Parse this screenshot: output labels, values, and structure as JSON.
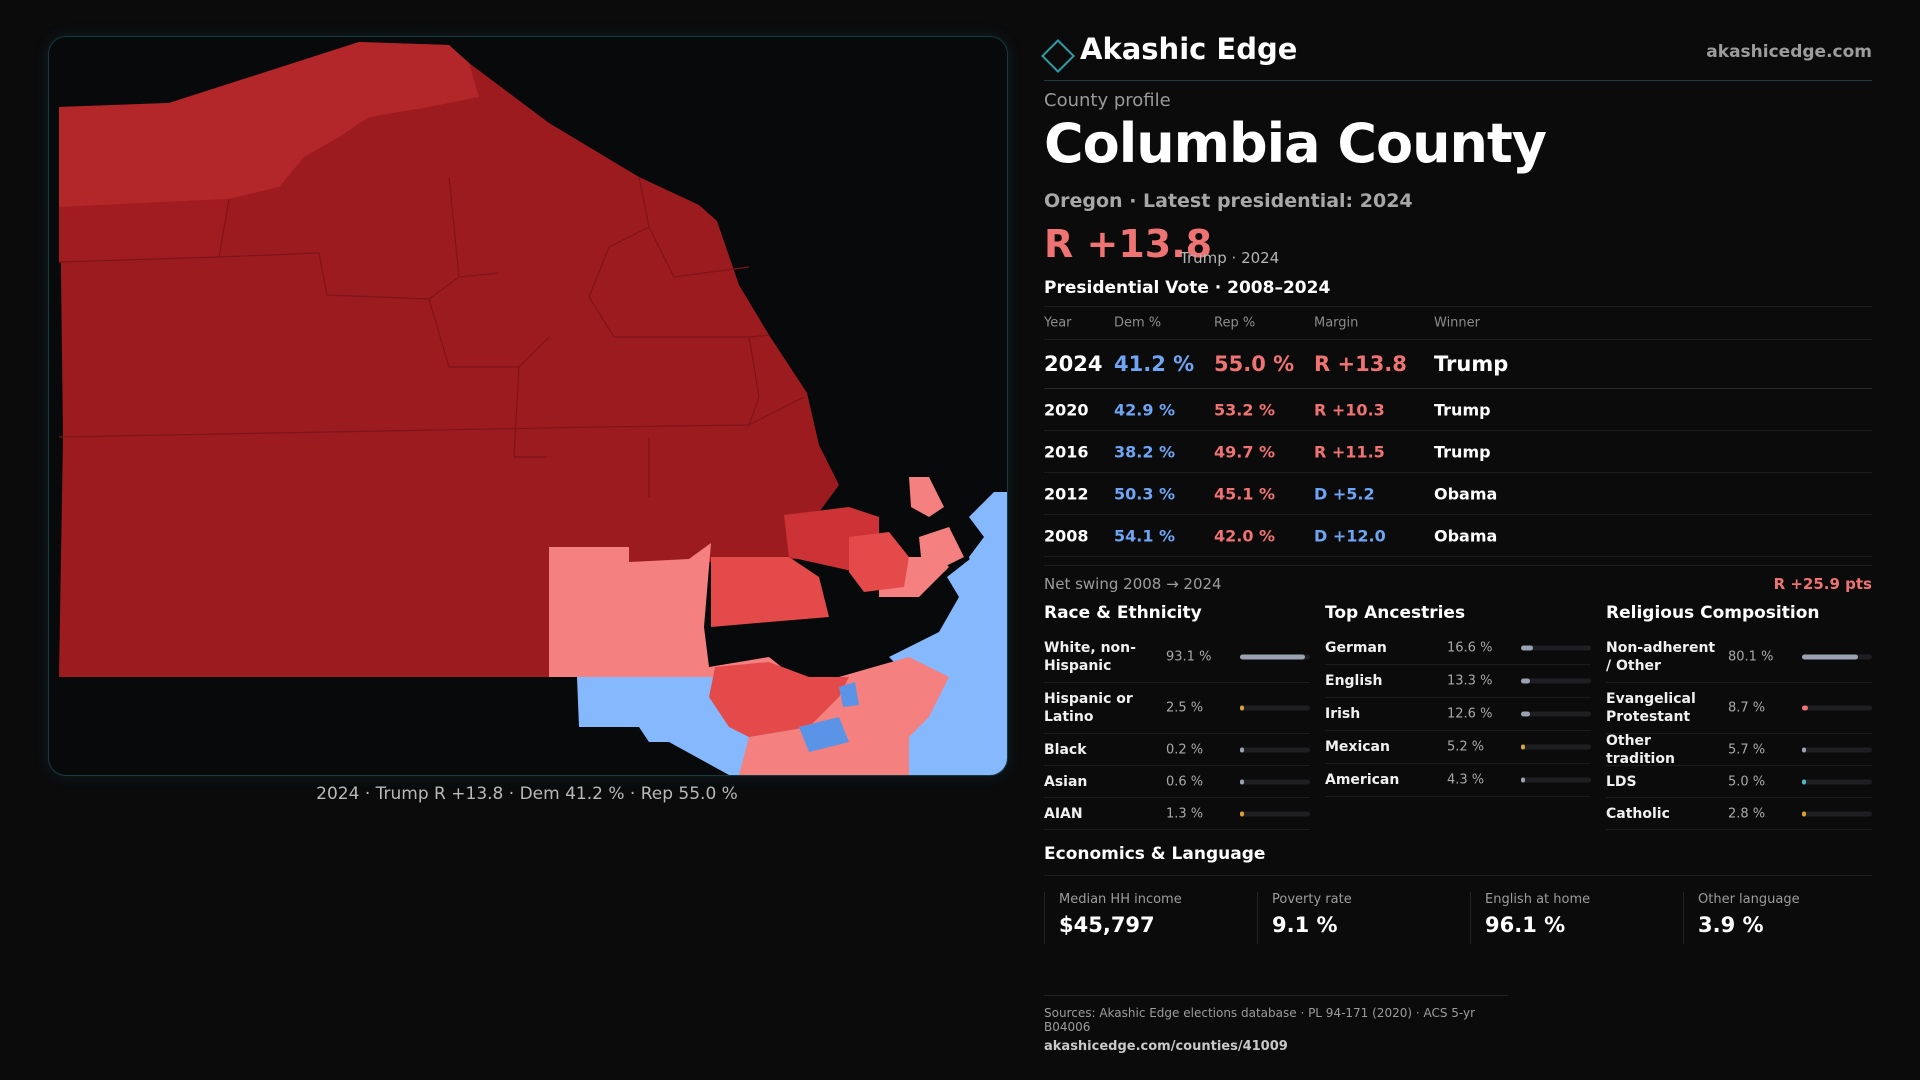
{
  "brand": {
    "name": "Akashic Edge",
    "site": "akashicedge.com"
  },
  "colors": {
    "rep_strong": "#9c1b1f",
    "rep_mid": "#b3262a",
    "rep_light": "#f58080",
    "rep_bright": "#e54a4a",
    "dem_light": "#86b8fd",
    "dem_mid": "#5b93e6",
    "accent": "#2f9aa6"
  },
  "map": {
    "icon": "county-map",
    "caption": "2024 · Trump R +13.8 · Dem 41.2 % · Rep 55.0 %"
  },
  "profile": {
    "label": "County profile",
    "county": "Columbia County",
    "subtitle": "Oregon · Latest presidential: 2024",
    "margin": "R +13.8",
    "margin_sub": "Trump · 2024"
  },
  "vote": {
    "title": "Presidential Vote · 2008–2024",
    "headers": {
      "year": "Year",
      "dem": "Dem %",
      "rep": "Rep %",
      "margin": "Margin",
      "winner": "Winner"
    },
    "rows": [
      {
        "year": "2024",
        "dem": "41.2 %",
        "rep": "55.0 %",
        "margin": "R +13.8",
        "party": "rep",
        "winner": "Trump"
      },
      {
        "year": "2020",
        "dem": "42.9 %",
        "rep": "53.2 %",
        "margin": "R +10.3",
        "party": "rep",
        "winner": "Trump"
      },
      {
        "year": "2016",
        "dem": "38.2 %",
        "rep": "49.7 %",
        "margin": "R +11.5",
        "party": "rep",
        "winner": "Trump"
      },
      {
        "year": "2012",
        "dem": "50.3 %",
        "rep": "45.1 %",
        "margin": "D +5.2",
        "party": "dem",
        "winner": "Obama"
      },
      {
        "year": "2008",
        "dem": "54.1 %",
        "rep": "42.0 %",
        "margin": "D +12.0",
        "party": "dem",
        "winner": "Obama"
      }
    ],
    "swing_label": "Net swing 2008 → 2024",
    "swing_value": "R +25.9 pts"
  },
  "race": {
    "title": "Race & Ethnicity",
    "items": [
      {
        "name": "White, non-Hispanic",
        "pct": "93.1 %",
        "value": 93.1,
        "color": "#9aa3b2"
      },
      {
        "name": "Hispanic or Latino",
        "pct": "2.5 %",
        "value": 2.5,
        "color": "#d9a23a"
      },
      {
        "name": "Black",
        "pct": "0.2 %",
        "value": 0.2,
        "color": "#9aa3b2"
      },
      {
        "name": "Asian",
        "pct": "0.6 %",
        "value": 0.6,
        "color": "#9aa3b2"
      },
      {
        "name": "AIAN",
        "pct": "1.3 %",
        "value": 1.3,
        "color": "#d9a23a"
      }
    ]
  },
  "ancestry": {
    "title": "Top Ancestries",
    "items": [
      {
        "name": "German",
        "pct": "16.6 %",
        "value": 16.6,
        "color": "#9aa3b2"
      },
      {
        "name": "English",
        "pct": "13.3 %",
        "value": 13.3,
        "color": "#9aa3b2"
      },
      {
        "name": "Irish",
        "pct": "12.6 %",
        "value": 12.6,
        "color": "#9aa3b2"
      },
      {
        "name": "Mexican",
        "pct": "5.2 %",
        "value": 5.2,
        "color": "#d9a23a"
      },
      {
        "name": "American",
        "pct": "4.3 %",
        "value": 4.3,
        "color": "#9aa3b2"
      }
    ]
  },
  "religion": {
    "title": "Religious Composition",
    "items": [
      {
        "name": "Non-adherent / Other",
        "pct": "80.1 %",
        "value": 80.1,
        "color": "#9aa3b2"
      },
      {
        "name": "Evangelical Protestant",
        "pct": "8.7 %",
        "value": 8.7,
        "color": "#f07373"
      },
      {
        "name": "Other tradition",
        "pct": "5.7 %",
        "value": 5.7,
        "color": "#9aa3b2"
      },
      {
        "name": "LDS",
        "pct": "5.0 %",
        "value": 5.0,
        "color": "#4fb6c4"
      },
      {
        "name": "Catholic",
        "pct": "2.8 %",
        "value": 2.8,
        "color": "#d9a23a"
      }
    ]
  },
  "economics": {
    "title": "Economics & Language",
    "kpis": [
      {
        "label": "Median HH income",
        "value": "$45,797"
      },
      {
        "label": "Poverty rate",
        "value": "9.1 %"
      },
      {
        "label": "English at home",
        "value": "96.1 %"
      },
      {
        "label": "Other language",
        "value": "3.9 %"
      }
    ]
  },
  "sources": {
    "text": "Sources: Akashic Edge elections database · PL 94-171 (2020) · ACS 5-yr B04006",
    "url": "akashicedge.com/counties/41009"
  }
}
